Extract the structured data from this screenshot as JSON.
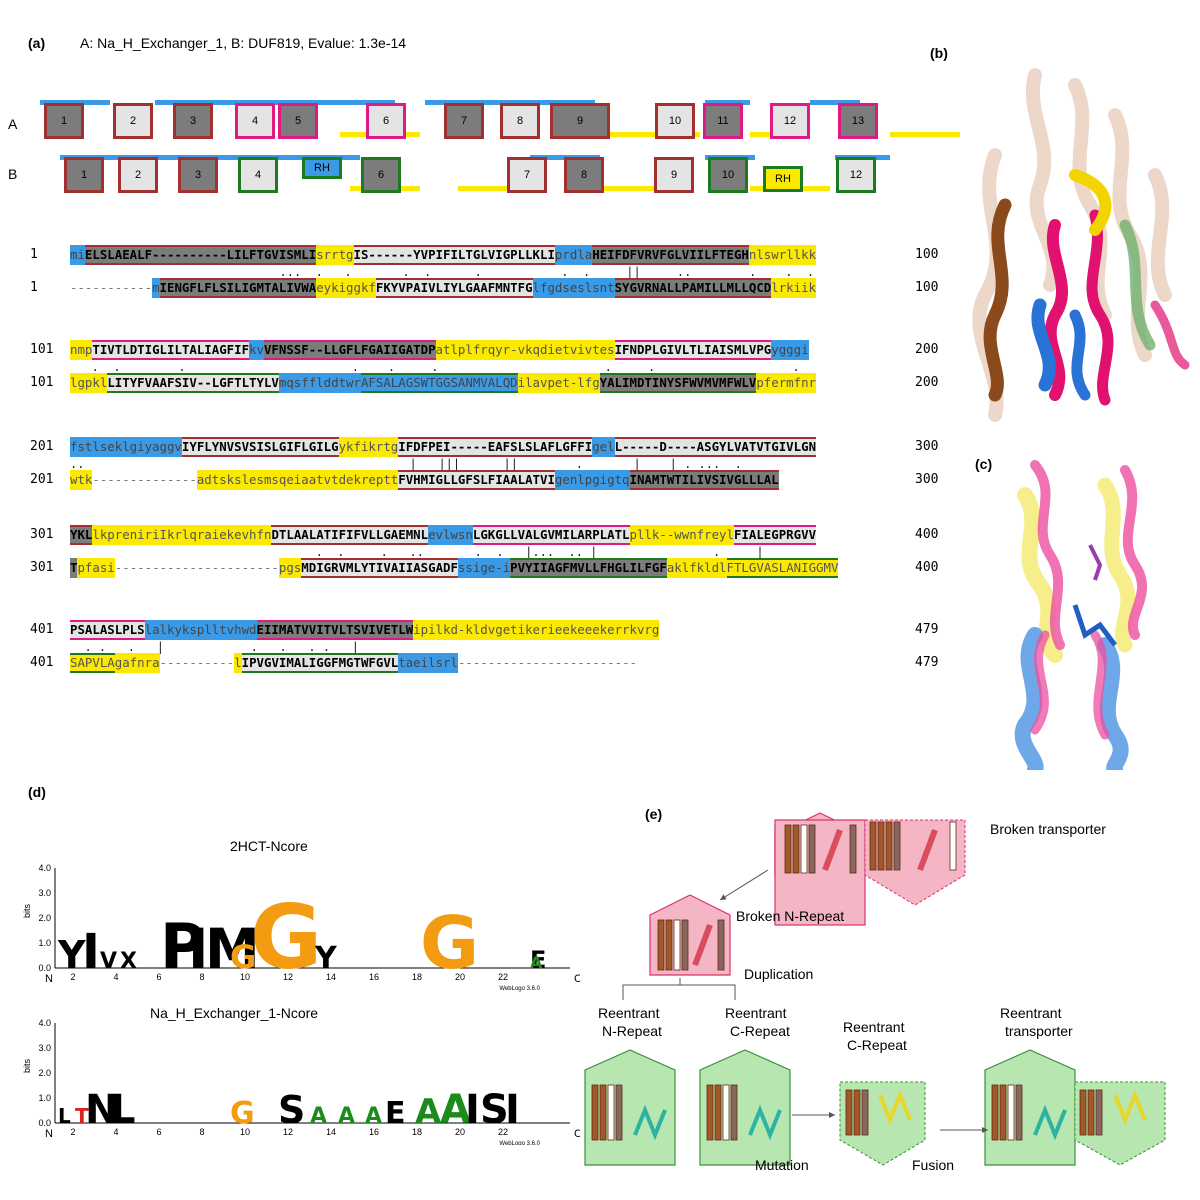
{
  "panels": {
    "a": "(a)",
    "b": "(b)",
    "c": "(c)",
    "d": "(d)",
    "e": "(e)"
  },
  "header": {
    "text": "A: Na_H_Exchanger_1, B: DUF819, Evalue: 1.3e-14"
  },
  "topology": {
    "rowA_label": "A",
    "rowB_label": "B",
    "rowA_helices": [
      "1",
      "2",
      "3",
      "4",
      "5",
      "6",
      "7",
      "8",
      "9",
      "10",
      "11",
      "12",
      "13"
    ],
    "rowB_helices": [
      "1",
      "2",
      "3",
      "4",
      "RH",
      "6",
      "7",
      "8",
      "9",
      "10",
      "RH",
      "12"
    ]
  },
  "alignment": [
    {
      "start": "1",
      "end": "100",
      "a_segments": [
        {
          "t": "mi",
          "c": "b"
        },
        {
          "t": "ELSLAEALF----------LILFTGVISMLI",
          "c": "g brd"
        },
        {
          "t": "srrtg",
          "c": "y"
        },
        {
          "t": "IS------YVPIFILTGLVIGPLLKLI",
          "c": "l brd"
        },
        {
          "t": "prdla",
          "c": "b"
        },
        {
          "t": "HEIFDFVRVFGLVIILFTEGH",
          "c": "g brd"
        },
        {
          "t": "nlswrllkk",
          "c": "y"
        }
      ],
      "match": "                             ...  .   .       .  .      .           .  .     ||     ..        .    .  .",
      "b_start": "1",
      "b_end": "100",
      "b_segments": [
        {
          "t": "-----------",
          "c": "gap"
        },
        {
          "t": "m",
          "c": "b"
        },
        {
          "t": "IENGFLFLSILIGMTALIVWA",
          "c": "g brd"
        },
        {
          "t": "eykiggkf",
          "c": "y"
        },
        {
          "t": "FKYVPAIVLIYLGAAFMNTFG",
          "c": "l brd"
        },
        {
          "t": "lfgdseslsnt",
          "c": "b"
        },
        {
          "t": "SYGVRNALLPAMILLMLLQCD",
          "c": "g brd"
        },
        {
          "t": "lrkiik",
          "c": "y"
        }
      ]
    },
    {
      "start": "101",
      "end": "200",
      "a_segments": [
        {
          "t": "nmp",
          "c": "y"
        },
        {
          "t": "TIVTLDTIGLILTALIAGFIF",
          "c": "l pnk"
        },
        {
          "t": "kv",
          "c": "b"
        },
        {
          "t": "VFNSSF--LLGFLFGAIIGATDP",
          "c": "g pnk"
        },
        {
          "t": "atlplfrqyr-vkqdietvivtes",
          "c": "y"
        },
        {
          "t": "IFNDPLGIVLTLIAISMLVPG",
          "c": "l pnk"
        },
        {
          "t": "ygggi",
          "c": "b"
        }
      ],
      "match": "   .  .        .                       .    .     .                       .     .                   .",
      "b_start": "101",
      "b_end": "200",
      "b_segments": [
        {
          "t": "lgpkl",
          "c": "y"
        },
        {
          "t": "LITYFVAAFSIV--LGFTLTYLV",
          "c": "l grn"
        },
        {
          "t": "mqsfflddtwr",
          "c": "b"
        },
        {
          "t": "AFSALAGSWTGGSANMVALQD",
          "c": "b grn"
        },
        {
          "t": "ilavpet-lfg",
          "c": "y"
        },
        {
          "t": "YALIMDTINYSFWVMVMFWLV",
          "c": "g grn"
        },
        {
          "t": "pfermfnr",
          "c": "y"
        }
      ]
    },
    {
      "start": "201",
      "end": "300",
      "a_segments": [
        {
          "t": "fstlseklgiyaggv",
          "c": "b"
        },
        {
          "t": "IYFLYNVSVSISLGIFLGILG",
          "c": "l brd"
        },
        {
          "t": "ykfikrtg",
          "c": "y"
        },
        {
          "t": "IFDFPEI-----EAFSLSLAFLGFFI",
          "c": "l brd"
        },
        {
          "t": "gel",
          "c": "b"
        },
        {
          "t": "L-----D----ASGYLVATVTGIVLGN",
          "c": "l brd"
        }
      ],
      "match": "..                                             |   |||      ||        .       |    | . ...  .",
      "b_start": "201",
      "b_end": "300",
      "b_segments": [
        {
          "t": "wtk",
          "c": "y"
        },
        {
          "t": "--------------",
          "c": "gap"
        },
        {
          "t": "adtskslesmsqeiaatvtdekreptt",
          "c": "y"
        },
        {
          "t": "FVHMIGLLGFSLFIAALATVI",
          "c": "l brd"
        },
        {
          "t": "genlpgigtq",
          "c": "b"
        },
        {
          "t": "INAMTWTILIVSIVGLLLAL",
          "c": "g brd"
        }
      ]
    },
    {
      "start": "301",
      "end": "400",
      "a_segments": [
        {
          "t": "YKL",
          "c": "g brd"
        },
        {
          "t": "lkpreniriIkrlqraiekevhfn",
          "c": "y"
        },
        {
          "t": "DTLAALATIFIFVLLGAEMNL",
          "c": "l brd"
        },
        {
          "t": "evlwsn",
          "c": "b"
        },
        {
          "t": "LGKGLLVALGVMILARPLATL",
          "c": "l pnk"
        },
        {
          "t": "pllk",
          "c": "y"
        },
        {
          "t": "--wwnfreyl",
          "c": "y"
        },
        {
          "t": "FIALEGPRGVV",
          "c": "l pnk"
        }
      ],
      "match": "                                  .  .     .   ..       .  .   |...  .. |                .     |",
      "b_start": "301",
      "b_end": "400",
      "b_segments": [
        {
          "t": "T",
          "c": "g"
        },
        {
          "t": "pfasi",
          "c": "y"
        },
        {
          "t": "----------------------",
          "c": "gap"
        },
        {
          "t": "pgs",
          "c": "y"
        },
        {
          "t": "MDIGRVMLYTIVAIIASGADF",
          "c": "l brd"
        },
        {
          "t": "ssige-i",
          "c": "b"
        },
        {
          "t": "PVYIIAGFMVLLFHGLILFGF",
          "c": "g grn"
        },
        {
          "t": "aklfkldl",
          "c": "y"
        },
        {
          "t": "FTLGVASLANIGGMV",
          "c": "y grn"
        }
      ]
    },
    {
      "start": "401",
      "end": "479",
      "a_segments": [
        {
          "t": "PSALASLPLS",
          "c": "l pnk"
        },
        {
          "t": "lalkyksplltvhwd",
          "c": "b"
        },
        {
          "t": "EIIMATVVITVLTSVIVETLW",
          "c": "g pnk"
        },
        {
          "t": "ipilkd-",
          "c": "y"
        },
        {
          "t": "kldvgetikerieekeeekerrkvrg",
          "c": "y"
        }
      ],
      "match": "  . .   .   |            .   .   . .   |",
      "b_start": "401",
      "b_end": "479",
      "b_segments": [
        {
          "t": "SAPVLA",
          "c": "y grn"
        },
        {
          "t": "gafnra",
          "c": "y"
        },
        {
          "t": "----------",
          "c": "gap"
        },
        {
          "t": "l",
          "c": "y"
        },
        {
          "t": "IPVGVIMALIGGFMGTWFGVL",
          "c": "l grn"
        },
        {
          "t": "taeilsrl",
          "c": "b"
        },
        {
          "t": "------------------------",
          "c": "gap"
        }
      ]
    }
  ],
  "logos": {
    "logo1_title": "2HCT-Ncore",
    "logo2_title": "Na_H_Exchanger_1-Ncore",
    "yaxis_label": "bits",
    "yticks": [
      "4.0",
      "3.0",
      "2.0",
      "1.0",
      "0.0"
    ],
    "xticks": [
      "2",
      "4",
      "6",
      "8",
      "10",
      "12",
      "14",
      "16",
      "18",
      "20",
      "22"
    ],
    "n_label": "N",
    "c_label": "C",
    "credit1": "WebLogo 3.6.0",
    "credit2": "WebLogo 3.6.0"
  },
  "scheme": {
    "broken_transporter": "Broken  transporter",
    "broken_n_repeat": "Broken N-Repeat",
    "duplication": "Duplication",
    "reentrant_n_repeat": "Reentrant\nN-Repeat",
    "reentrant_c_repeat": "Reentrant\nC-Repeat",
    "reentrant_c_repeat2": "Reentrant\nC-Repeat",
    "reentrant_transporter": "Reentrant\ntransporter",
    "mutation": "Mutation",
    "fusion": "Fusion"
  },
  "colors": {
    "yellow": "#fbe900",
    "blue": "#3b9ae6",
    "grey": "#7c7c7c",
    "light": "#e4e4e4",
    "brown_red": "#a32f2f",
    "pink": "#e01a84",
    "green": "#1e7a1e"
  }
}
